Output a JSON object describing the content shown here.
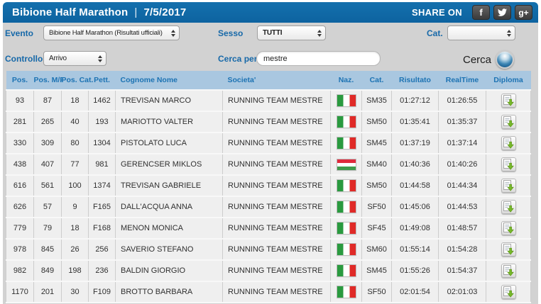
{
  "colors": {
    "topbar_blue": "#0d63a0",
    "panel_gray": "#d2d2d2",
    "table_header_blue": "#a9c7e0",
    "label_blue": "#1769a9",
    "header_text_blue": "#1d73b3",
    "diploma_arrow_green": "#76b82a"
  },
  "header": {
    "event": "Bibione Half Marathon",
    "separator": "|",
    "date": "7/5/2017",
    "share_label": "SHARE ON",
    "facebook_glyph": "f",
    "googleplus_glyph": "g+"
  },
  "filters": {
    "evento_label": "Evento",
    "evento_value": "Bibione Half Marathon (Risultati ufficiali)",
    "sesso_label": "Sesso",
    "sesso_value": "TUTTI",
    "cat_label": "Cat.",
    "cat_value": "",
    "controllo_label": "Controllo",
    "controllo_value": "Arrivo",
    "cerca_per_label": "Cerca per",
    "search_value": "mestre",
    "cerca_button_label": "Cerca"
  },
  "icons": {
    "facebook": "facebook-icon",
    "twitter": "twitter-bird-icon",
    "googleplus": "googleplus-icon",
    "select_spinner": "up-down-arrows-icon",
    "search_orb": "search-orb-icon",
    "diploma": "diploma-download-icon",
    "ita_flag": "italy-flag-icon",
    "hun_flag": "hungary-flag-icon"
  },
  "table": {
    "columns": [
      "Pos.",
      "Pos. M/F",
      "Pos. Cat.",
      "Pett.",
      "Cognome Nome",
      "Societa'",
      "Naz.",
      "Cat.",
      "Risultato",
      "RealTime",
      "Diploma"
    ],
    "rows": [
      {
        "pos": "93",
        "pos_mf": "87",
        "pos_cat": "18",
        "pett": "1462",
        "nome": "TREVISAN MARCO",
        "societa": "RUNNING TEAM MESTRE",
        "naz": "ITA",
        "cat": "SM35",
        "risultato": "01:27:12",
        "realtime": "01:26:55"
      },
      {
        "pos": "281",
        "pos_mf": "265",
        "pos_cat": "40",
        "pett": "193",
        "nome": "MARIOTTO VALTER",
        "societa": "RUNNING TEAM MESTRE",
        "naz": "ITA",
        "cat": "SM50",
        "risultato": "01:35:41",
        "realtime": "01:35:37"
      },
      {
        "pos": "330",
        "pos_mf": "309",
        "pos_cat": "80",
        "pett": "1304",
        "nome": "PISTOLATO LUCA",
        "societa": "RUNNING TEAM MESTRE",
        "naz": "ITA",
        "cat": "SM45",
        "risultato": "01:37:19",
        "realtime": "01:37:14"
      },
      {
        "pos": "438",
        "pos_mf": "407",
        "pos_cat": "77",
        "pett": "981",
        "nome": "GERENCSER MIKLOS",
        "societa": "RUNNING TEAM MESTRE",
        "naz": "HUN",
        "cat": "SM40",
        "risultato": "01:40:36",
        "realtime": "01:40:26"
      },
      {
        "pos": "616",
        "pos_mf": "561",
        "pos_cat": "100",
        "pett": "1374",
        "nome": "TREVISAN GABRIELE",
        "societa": "RUNNING TEAM MESTRE",
        "naz": "ITA",
        "cat": "SM50",
        "risultato": "01:44:58",
        "realtime": "01:44:34"
      },
      {
        "pos": "626",
        "pos_mf": "57",
        "pos_cat": "9",
        "pett": "F165",
        "nome": "DALL'ACQUA ANNA",
        "societa": "RUNNING TEAM MESTRE",
        "naz": "ITA",
        "cat": "SF50",
        "risultato": "01:45:06",
        "realtime": "01:44:53"
      },
      {
        "pos": "779",
        "pos_mf": "79",
        "pos_cat": "18",
        "pett": "F168",
        "nome": "MENON MONICA",
        "societa": "RUNNING TEAM MESTRE",
        "naz": "ITA",
        "cat": "SF45",
        "risultato": "01:49:08",
        "realtime": "01:48:57"
      },
      {
        "pos": "978",
        "pos_mf": "845",
        "pos_cat": "26",
        "pett": "256",
        "nome": "SAVERIO STEFANO",
        "societa": "RUNNING TEAM MESTRE",
        "naz": "ITA",
        "cat": "SM60",
        "risultato": "01:55:14",
        "realtime": "01:54:28"
      },
      {
        "pos": "982",
        "pos_mf": "849",
        "pos_cat": "198",
        "pett": "236",
        "nome": "BALDIN GIORGIO",
        "societa": "RUNNING TEAM MESTRE",
        "naz": "ITA",
        "cat": "SM45",
        "risultato": "01:55:26",
        "realtime": "01:54:37"
      },
      {
        "pos": "1170",
        "pos_mf": "201",
        "pos_cat": "30",
        "pett": "F109",
        "nome": "BROTTO BARBARA",
        "societa": "RUNNING TEAM MESTRE",
        "naz": "ITA",
        "cat": "SF50",
        "risultato": "02:01:54",
        "realtime": "02:01:03"
      }
    ]
  }
}
